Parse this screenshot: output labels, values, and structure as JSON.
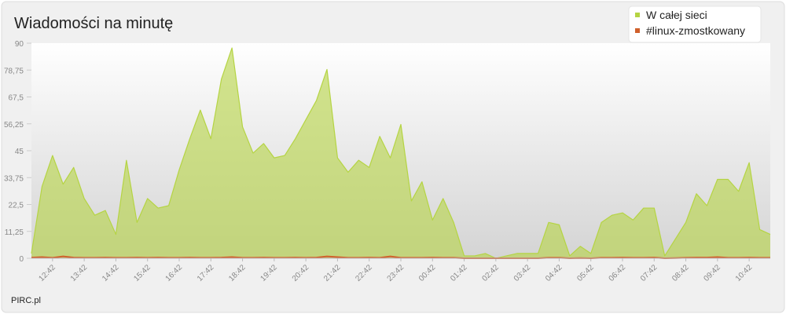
{
  "chart_data": {
    "type": "area",
    "title": "Wiadomości na minutę",
    "footer": "PIRC.pl",
    "categories": [
      null,
      null,
      "12:42",
      null,
      null,
      "13:42",
      null,
      null,
      "14:42",
      null,
      null,
      "15:42",
      null,
      null,
      "16:42",
      null,
      null,
      "17:42",
      null,
      null,
      "18:42",
      null,
      null,
      "19:42",
      null,
      null,
      "20:42",
      null,
      null,
      "21:42",
      null,
      null,
      "22:42",
      null,
      null,
      "23:42",
      null,
      null,
      "00:42",
      null,
      null,
      "01:42",
      null,
      null,
      "02:42",
      null,
      null,
      "03:42",
      null,
      null,
      "04:42",
      null,
      null,
      "05:42",
      null,
      null,
      "06:42",
      null,
      null,
      "07:42",
      null,
      null,
      "08:42",
      null,
      null,
      "09:42",
      null,
      null,
      "10:42",
      null,
      null
    ],
    "series": [
      {
        "name": "W całej sieci",
        "color": "#b5d443",
        "values": [
          2,
          30,
          43,
          31,
          38,
          25,
          18,
          20,
          10,
          41,
          15,
          25,
          21,
          22,
          37,
          50,
          62,
          50,
          75,
          88,
          55,
          44,
          48,
          42,
          43,
          50,
          58,
          66,
          79,
          42,
          36,
          41,
          38,
          51,
          42,
          56,
          24,
          32,
          16,
          25,
          15,
          1,
          1,
          2,
          0,
          1,
          2,
          2,
          2,
          15,
          14,
          1,
          5,
          2,
          15,
          18,
          19,
          16,
          21,
          21,
          1,
          8,
          15,
          27,
          22,
          33,
          33,
          28,
          40,
          12,
          10
        ]
      },
      {
        "name": "#linux-zmostkowany",
        "color": "#d0602c",
        "values": [
          0.3,
          0.5,
          0.2,
          0.8,
          0.3,
          0.2,
          0.2,
          0.3,
          0.2,
          0.2,
          0.3,
          0.2,
          0.3,
          0.2,
          0.2,
          0.3,
          0.2,
          0.2,
          0.3,
          0.5,
          0.2,
          0.2,
          0.3,
          0.2,
          0.2,
          0.3,
          0.2,
          0.3,
          0.8,
          0.5,
          0.2,
          0.2,
          0.3,
          0.2,
          0.8,
          0.2,
          0.2,
          0.2,
          0.3,
          0.2,
          0.2,
          0,
          0,
          0,
          0,
          0,
          0,
          0,
          0,
          0.2,
          0.2,
          0,
          0.1,
          0,
          0.2,
          0.2,
          0.3,
          0.2,
          0.2,
          0.3,
          0,
          0.1,
          0.2,
          0.3,
          0.3,
          0.5,
          0.2,
          0.2,
          0.3,
          0.2,
          0.2
        ]
      }
    ],
    "ylim": [
      0,
      90
    ],
    "yticks": [
      0,
      {
        "value": 11.25,
        "label": "11,25"
      },
      {
        "value": 22.5,
        "label": "22,5"
      },
      {
        "value": 33.75,
        "label": "33,75"
      },
      45,
      {
        "value": 56.25,
        "label": "56,25"
      },
      {
        "value": 67.5,
        "label": "67,5"
      },
      {
        "value": 78.75,
        "label": "78,75"
      },
      90
    ],
    "legend": "top-right"
  }
}
